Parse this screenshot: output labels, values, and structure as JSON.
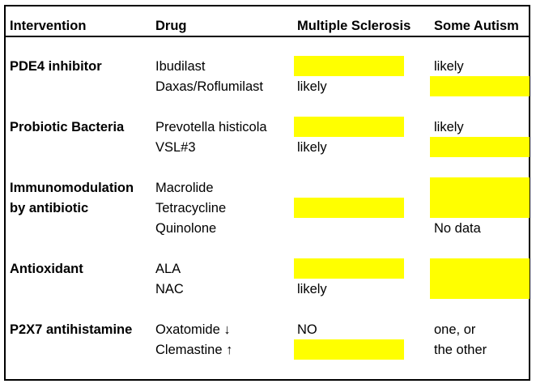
{
  "highlight_color": "#FFFF00",
  "headers": {
    "intervention": "Intervention",
    "drug": "Drug",
    "ms": "Multiple Sclerosis",
    "autism": "Some Autism"
  },
  "groups": [
    {
      "intervention": [
        "PDE4 inhibitor"
      ],
      "drugs": [
        {
          "name": "Ibudilast",
          "ms": "",
          "ms_highlight": true,
          "autism": "likely",
          "autism_highlight": false
        },
        {
          "name": "Daxas/Roflumilast",
          "ms": "likely",
          "ms_highlight": false,
          "autism": "",
          "autism_highlight": true
        }
      ]
    },
    {
      "intervention": [
        "Probiotic Bacteria"
      ],
      "drugs": [
        {
          "name": "Prevotella histicola",
          "ms": "",
          "ms_highlight": true,
          "autism": "likely",
          "autism_highlight": false
        },
        {
          "name": "VSL#3",
          "ms": "likely",
          "ms_highlight": false,
          "autism": "",
          "autism_highlight": true
        }
      ]
    },
    {
      "intervention": [
        "Immunomodulation",
        "by antibiotic"
      ],
      "drugs": [
        {
          "name": "Macrolide",
          "ms": "",
          "ms_highlight": false,
          "autism": "",
          "autism_highlight": true
        },
        {
          "name": "Tetracycline",
          "ms": "",
          "ms_highlight": true,
          "autism": "",
          "autism_highlight": true
        },
        {
          "name": "Quinolone",
          "ms": "",
          "ms_highlight": false,
          "autism": "No data",
          "autism_highlight": false
        }
      ]
    },
    {
      "intervention": [
        "Antioxidant"
      ],
      "drugs": [
        {
          "name": "ALA",
          "ms": "",
          "ms_highlight": true,
          "autism": "",
          "autism_highlight": true
        },
        {
          "name": "NAC",
          "ms": "likely",
          "ms_highlight": false,
          "autism": "",
          "autism_highlight": true
        }
      ]
    },
    {
      "intervention": [
        "P2X7 antihistamine"
      ],
      "drugs": [
        {
          "name": "Oxatomide ↓",
          "ms": "NO",
          "ms_highlight": false,
          "autism": "one, or",
          "autism_highlight": false
        },
        {
          "name": "Clemastine ↑",
          "ms": "",
          "ms_highlight": true,
          "autism": "the other",
          "autism_highlight": false
        }
      ]
    }
  ]
}
